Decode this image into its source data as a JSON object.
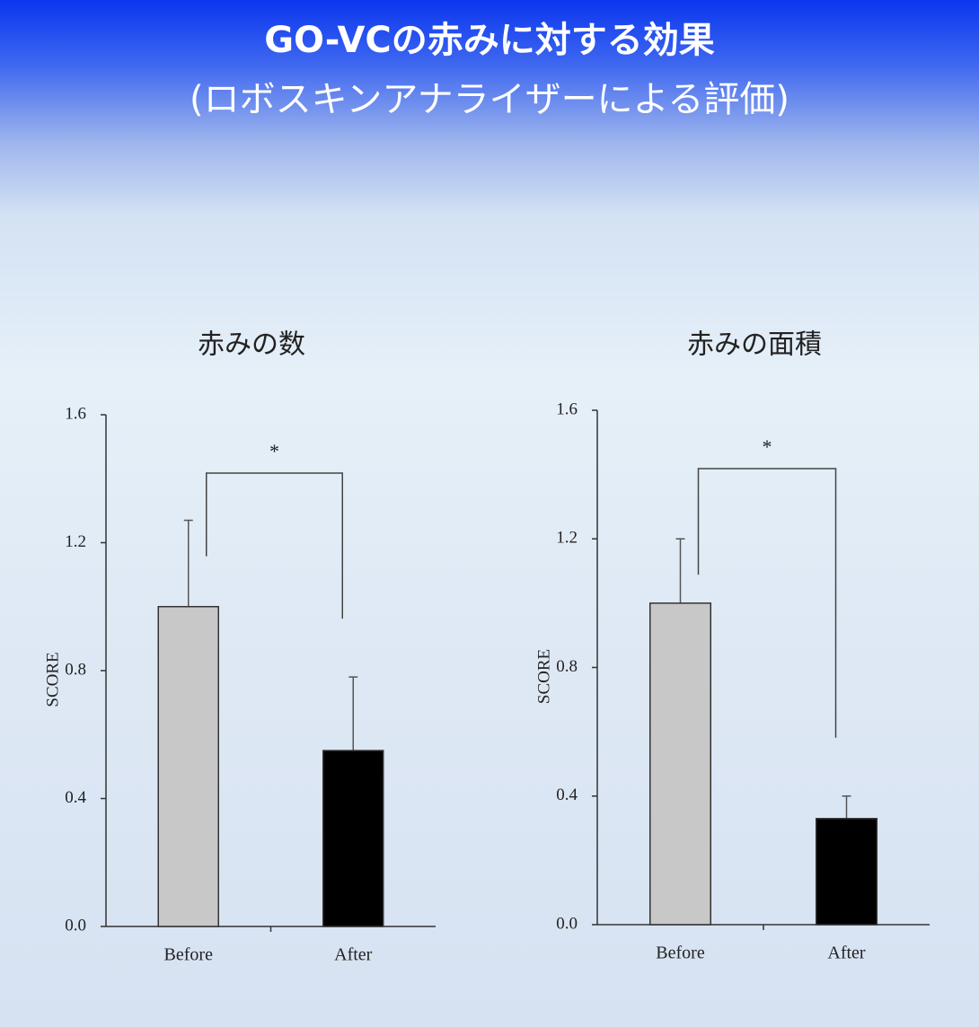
{
  "title": "GO-VCの赤みに対する効果",
  "subtitle": "(ロボスキンアナライザーによる評価)",
  "chart_data": [
    {
      "type": "bar",
      "title": "赤みの数",
      "y_label": "SCORE",
      "categories": [
        "Before",
        "After"
      ],
      "values": [
        1.0,
        0.55
      ],
      "errors": [
        0.27,
        0.23
      ],
      "colors": [
        "#c8c8c8",
        "#000000"
      ],
      "ylim": [
        0,
        1.6
      ],
      "yticks": [
        {
          "value": 0,
          "label": "0.0"
        },
        0.4,
        0.8,
        1.2,
        1.6
      ],
      "grid": false,
      "annotation": "*"
    },
    {
      "type": "bar",
      "title": "赤みの面積",
      "y_label": "SCORE",
      "categories": [
        "Before",
        "After"
      ],
      "values": [
        1.0,
        0.33
      ],
      "errors": [
        0.2,
        0.07
      ],
      "colors": [
        "#c8c8c8",
        "#000000"
      ],
      "ylim": [
        0,
        1.6
      ],
      "yticks": [
        {
          "value": 0,
          "label": "0.0"
        },
        0.4,
        0.8,
        1.2,
        1.6
      ],
      "grid": false,
      "annotation": "*"
    }
  ]
}
